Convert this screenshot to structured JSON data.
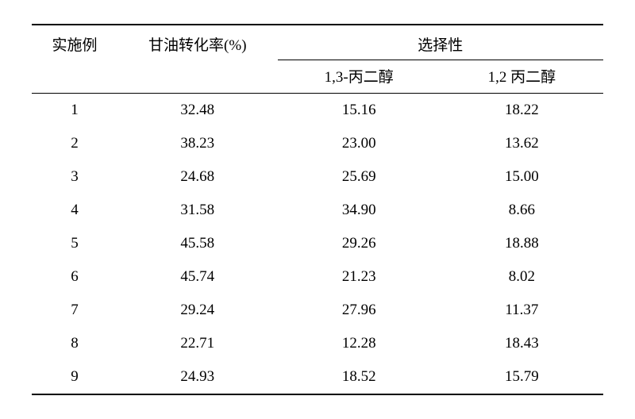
{
  "table": {
    "headers": {
      "example": "实施例",
      "conversion": "甘油转化率(%)",
      "selectivity": "选择性",
      "sel_13": "1,3-丙二醇",
      "sel_12": "1,2 丙二醇"
    },
    "rows": [
      {
        "n": "1",
        "conv": "32.48",
        "s13": "15.16",
        "s12": "18.22"
      },
      {
        "n": "2",
        "conv": "38.23",
        "s13": "23.00",
        "s12": "13.62"
      },
      {
        "n": "3",
        "conv": "24.68",
        "s13": "25.69",
        "s12": "15.00"
      },
      {
        "n": "4",
        "conv": "31.58",
        "s13": "34.90",
        "s12": "8.66"
      },
      {
        "n": "5",
        "conv": "45.58",
        "s13": "29.26",
        "s12": "18.88"
      },
      {
        "n": "6",
        "conv": "45.74",
        "s13": "21.23",
        "s12": "8.02"
      },
      {
        "n": "7",
        "conv": "29.24",
        "s13": "27.96",
        "s12": "11.37"
      },
      {
        "n": "8",
        "conv": "22.71",
        "s13": "12.28",
        "s12": "18.43"
      },
      {
        "n": "9",
        "conv": "24.93",
        "s13": "18.52",
        "s12": "15.79"
      }
    ],
    "styling": {
      "background_color": "#ffffff",
      "text_color": "#000000",
      "border_color": "#000000",
      "border_thick": 2,
      "border_thin": 1,
      "font_size": 19,
      "font_family": "SimSun"
    }
  }
}
